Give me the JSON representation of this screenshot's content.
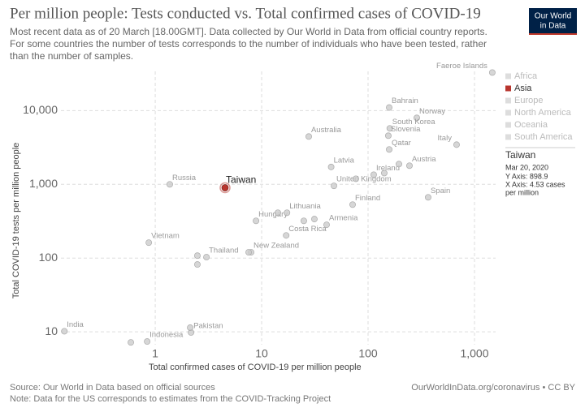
{
  "chart_data": {
    "type": "scatter",
    "title": "Per million people: Tests conducted vs. Total confirmed cases of COVID-19",
    "subtitle": [
      "Most recent data as of 20 March [18.00GMT]. Data collected by Our World in Data from official country reports.",
      "For some countries the number of tests corresponds to the number of individuals who have been tested, rather",
      "than the number of samples."
    ],
    "logo": [
      "Our World",
      "in Data"
    ],
    "x_label": "Total confirmed cases of COVID-19 per million people",
    "y_label": "Total COVID-19 tests per million people",
    "log_x": true,
    "log_y": true,
    "grid": true,
    "xlim": [
      0.13,
      1580
    ],
    "ylim": [
      6.7,
      34000
    ],
    "xticks": [
      1,
      10,
      100,
      {
        "value": 1000,
        "label": "1,000"
      }
    ],
    "yticks": [
      10,
      100,
      {
        "value": 1000,
        "label": "1,000"
      },
      {
        "value": 10000,
        "label": "10,000"
      }
    ],
    "color": "#cccccc",
    "highlight_color": "#b8352e",
    "points": {
      "labels": [
        "Faeroe Islands",
        "Bahrain",
        "Norway",
        "South Korea",
        "Slovenia",
        "Australia",
        "Qatar",
        "Italy",
        "Austria",
        "Latvia",
        "Ireland",
        "United Kingdom",
        "Russia",
        "Taiwan",
        "Spain",
        "Finland",
        "Hungary",
        "Lithuania",
        "Armenia",
        "Costa Rica",
        "Vietnam",
        "Thailand",
        "New Zealand",
        "India",
        "Pakistan",
        "Indonesia",
        null,
        null,
        null,
        null,
        null,
        null,
        null,
        null,
        null,
        null,
        null
      ],
      "x": [
        1470,
        158,
        287,
        160,
        155,
        27.7,
        158,
        679,
        245,
        45,
        113,
        47.8,
        1.37,
        4.53,
        367,
        71.6,
        8.85,
        17.3,
        40.8,
        17,
        0.87,
        3.03,
        7.96,
        0.14,
        2.17,
        0.84,
        195,
        76.8,
        142,
        14.2,
        24.9,
        31.3,
        2.49,
        2.49,
        7.55,
        0.59,
        2.13
      ],
      "y": [
        32800,
        11000,
        7960,
        5740,
        4560,
        4450,
        2970,
        3450,
        1790,
        1720,
        1350,
        953,
        1000,
        898.9,
        667,
        531,
        320,
        412,
        283,
        203,
        162,
        103,
        120,
        10.2,
        9.8,
        7.4,
        1880,
        1190,
        1420,
        412,
        320,
        338,
        108,
        82,
        120,
        7.2,
        11.4
      ]
    },
    "legend": [
      {
        "name": "Africa",
        "color": "#dddddd",
        "text_color": "#bbbbbb"
      },
      {
        "name": "Asia",
        "color": "#b8352e",
        "text_color": "#333333"
      },
      {
        "name": "Europe",
        "color": "#dddddd",
        "text_color": "#bbbbbb"
      },
      {
        "name": "North America",
        "color": "#dddddd",
        "text_color": "#bbbbbb"
      },
      {
        "name": "Oceania",
        "color": "#dddddd",
        "text_color": "#bbbbbb"
      },
      {
        "name": "South America",
        "color": "#dddddd",
        "text_color": "#bbbbbb"
      }
    ],
    "tooltip": {
      "title": "Taiwan",
      "date": "Mar 20, 2020",
      "y_text": "Y Axis: 898.9",
      "x_text": [
        "X Axis: 4.53 cases",
        "per million"
      ]
    },
    "source": "Source: Our World in Data based on official sources",
    "note": "Note: Data for the US corresponds to estimates from the COVID-Tracking Project",
    "credit": "OurWorldInData.org/coronavirus • CC BY"
  }
}
